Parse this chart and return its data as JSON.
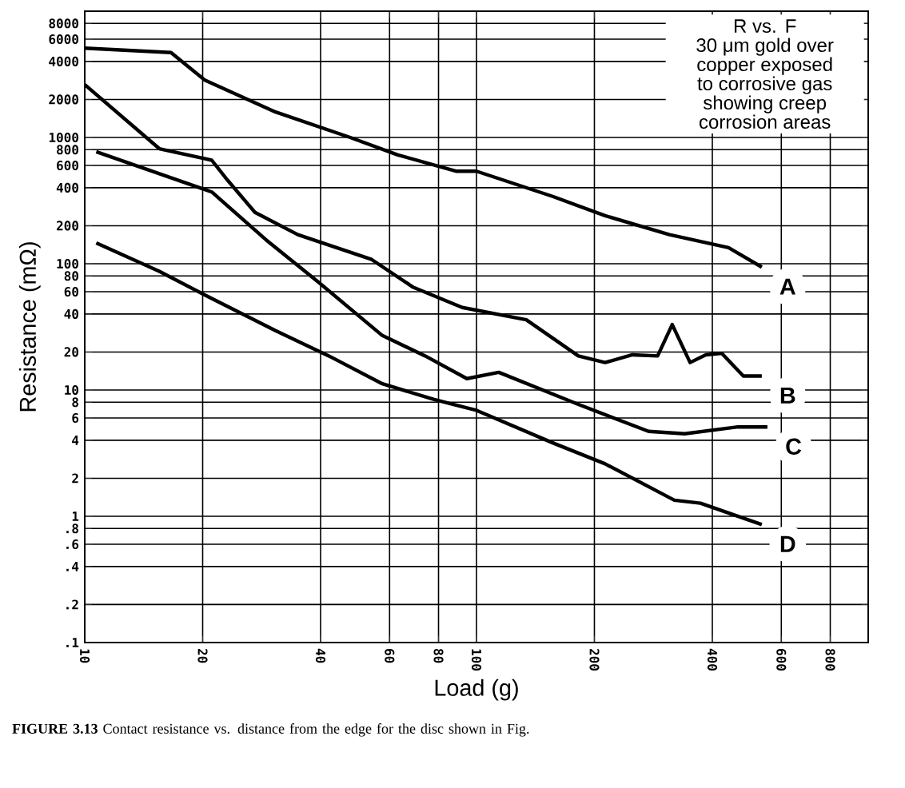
{
  "chart_data": {
    "type": "line",
    "title": "R vs. F",
    "subtitle": "30 μm gold over copper exposed to corrosive gas showing creep corrosion areas",
    "xlabel": "Load (g)",
    "ylabel": "Resistance (mΩ)",
    "log": "xy",
    "grid": true,
    "xlim": [
      10,
      1000
    ],
    "ylim": [
      0.1,
      10000
    ],
    "xticks": [
      10,
      20,
      40,
      60,
      80,
      100,
      200,
      400,
      600,
      800
    ],
    "yticks": [
      {
        "value": 0.1,
        "label": ".1"
      },
      {
        "value": 0.2,
        "label": ".2"
      },
      {
        "value": 0.4,
        "label": ".4"
      },
      {
        "value": 0.6,
        "label": ".6"
      },
      {
        "value": 0.8,
        "label": ".8"
      },
      1,
      2,
      4,
      6,
      8,
      10,
      20,
      40,
      60,
      80,
      100,
      200,
      400,
      600,
      800,
      1000,
      2000,
      4000,
      6000,
      8000
    ],
    "series": [
      {
        "name": "A",
        "color": "#000000",
        "x": [
          10,
          16.6,
          20.2,
          30.7,
          47.6,
          63,
          89,
          100,
          157,
          213,
          311,
          440,
          535
        ],
        "values": [
          5100,
          4700,
          2860,
          1590,
          1000,
          727,
          540,
          540,
          340,
          240,
          170,
          134,
          94
        ]
      },
      {
        "name": "B",
        "color": "#000000",
        "x": [
          10,
          15.5,
          21.1,
          23.2,
          27.2,
          35,
          54,
          69,
          92,
          134,
          182,
          213,
          250,
          290,
          316,
          351,
          385,
          423,
          480,
          535
        ],
        "values": [
          2620,
          815,
          660,
          455,
          255,
          170,
          108,
          65,
          45,
          36,
          18.6,
          16.5,
          19,
          18.6,
          33,
          16.5,
          19,
          19.5,
          12.9,
          12.9
        ]
      },
      {
        "name": "C",
        "color": "#000000",
        "x": [
          10.7,
          21.1,
          29,
          39.6,
          57.5,
          74,
          94.5,
          114,
          182,
          275,
          340,
          465,
          553
        ],
        "values": [
          770,
          370,
          155,
          71,
          27,
          18.6,
          12.3,
          13.8,
          7.7,
          4.7,
          4.5,
          5.1,
          5.1
        ]
      },
      {
        "name": "D",
        "color": "#000000",
        "x": [
          10.7,
          15.5,
          21.1,
          30.7,
          42,
          57.5,
          78,
          100,
          157,
          213,
          320,
          373,
          535
        ],
        "values": [
          146,
          87,
          53,
          29.5,
          18.6,
          11.2,
          8.4,
          6.9,
          3.8,
          2.6,
          1.34,
          1.27,
          0.86
        ]
      }
    ],
    "annotations": [
      "**FIGURE 3.13** Contact resistance vs. distance from the edge for the disc shown in Fig."
    ]
  }
}
